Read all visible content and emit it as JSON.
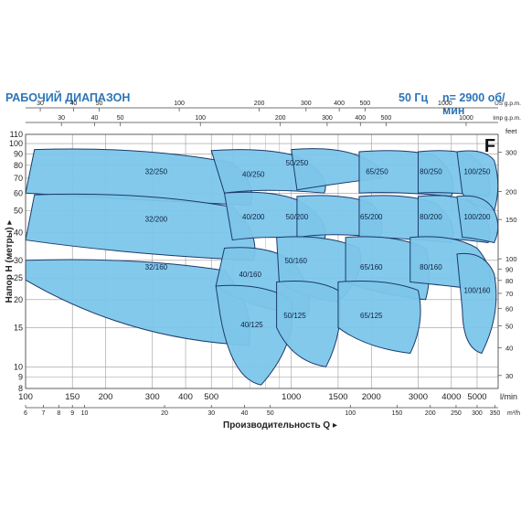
{
  "header": {
    "title": "РАБОЧИЙ ДИАПАЗОН",
    "frequency": "50 Гц",
    "speed": "n= 2900 об/мин",
    "family_letter": "F"
  },
  "colors": {
    "fill": "#7cc6ea",
    "stroke": "#1b3a6b",
    "grid": "#9a9a9a",
    "title": "#2b74b8",
    "text": "#222222"
  },
  "chart_data": {
    "type": "area",
    "x_scale": "log",
    "y_scale": "log",
    "xlim": [
      100,
      6000
    ],
    "ylim": [
      8,
      110
    ],
    "xlabel": "Производительность Q",
    "ylabel": "Напор Н (метры)",
    "axes": {
      "lmin": {
        "unit": "l/min",
        "ticks": [
          100,
          150,
          200,
          300,
          400,
          500,
          1000,
          1500,
          2000,
          3000,
          4000,
          5000
        ],
        "labels": [
          "100",
          "150",
          "200",
          "300",
          "400",
          "500",
          "1000",
          "1500",
          "2000",
          "3000",
          "4000",
          "5000"
        ]
      },
      "m3h": {
        "unit": "m³/h",
        "ticks": [
          6,
          7,
          8,
          9,
          10,
          20,
          30,
          40,
          50,
          100,
          150,
          200,
          250,
          300,
          350
        ],
        "labels": [
          "6",
          "7",
          "8",
          "9",
          "10",
          "20",
          "30",
          "40",
          "50",
          "100",
          "150",
          "200",
          "250",
          "300",
          "350"
        ]
      },
      "usgpm": {
        "unit": "US g.p.m.",
        "ticks": [
          30,
          40,
          50,
          100,
          200,
          300,
          400,
          500,
          1000
        ],
        "labels": [
          "30",
          "40",
          "50",
          "100",
          "200",
          "300",
          "400",
          "500",
          "1000"
        ]
      },
      "impgpm": {
        "unit": "Imp g.p.m.",
        "ticks": [
          30,
          40,
          50,
          100,
          200,
          300,
          400,
          500,
          1000
        ],
        "labels": [
          "30",
          "40",
          "50",
          "100",
          "200",
          "300",
          "400",
          "500",
          "1000"
        ]
      },
      "meters": {
        "ticks": [
          8,
          9,
          10,
          15,
          20,
          25,
          30,
          40,
          50,
          60,
          70,
          80,
          90,
          100,
          110
        ],
        "labels": [
          "8",
          "9",
          "10",
          "15",
          "20",
          "25",
          "30",
          "40",
          "50",
          "60",
          "70",
          "80",
          "90",
          "100",
          "110"
        ]
      },
      "feet": {
        "unit": "feet",
        "ticks": [
          30,
          40,
          50,
          60,
          70,
          80,
          90,
          100,
          150,
          200,
          300
        ],
        "labels": [
          "30",
          "40",
          "50",
          "60",
          "70",
          "80",
          "90",
          "100",
          "150",
          "200",
          "300"
        ]
      }
    },
    "pump_regions": [
      {
        "name": "32/250",
        "label_at": [
          310,
          75
        ],
        "corners": {
          "tl": [
            108,
            94
          ],
          "tr": [
            600,
            82
          ],
          "br": [
            700,
            53
          ],
          "bl": [
            100,
            60
          ]
        }
      },
      {
        "name": "32/200",
        "label_at": [
          310,
          46
        ],
        "corners": {
          "tl": [
            108,
            59
          ],
          "tr": [
            600,
            52
          ],
          "br": [
            720,
            30
          ],
          "bl": [
            100,
            37
          ]
        }
      },
      {
        "name": "32/160",
        "label_at": [
          310,
          28
        ],
        "corners": {
          "tl": [
            100,
            30
          ],
          "tr": [
            560,
            27
          ],
          "br": [
            690,
            12.5
          ],
          "bl": [
            100,
            24.5
          ]
        }
      },
      {
        "name": "40/250",
        "label_at": [
          720,
          73
        ],
        "corners": {
          "tl": [
            500,
            93
          ],
          "tr": [
            1050,
            88
          ],
          "br": [
            1330,
            60
          ],
          "bl": [
            560,
            60
          ]
        }
      },
      {
        "name": "40/200",
        "label_at": [
          720,
          47
        ],
        "corners": {
          "tl": [
            560,
            60
          ],
          "tr": [
            1050,
            56
          ],
          "br": [
            1330,
            37
          ],
          "bl": [
            600,
            37
          ]
        }
      },
      {
        "name": "40/160",
        "label_at": [
          700,
          26
        ],
        "corners": {
          "tl": [
            560,
            34
          ],
          "tr": [
            1000,
            30
          ],
          "br": [
            1150,
            17
          ],
          "bl": [
            520,
            23
          ]
        }
      },
      {
        "name": "40/125",
        "label_at": [
          710,
          15.5
        ],
        "corners": {
          "tl": [
            520,
            23
          ],
          "tr": [
            1000,
            20
          ],
          "br": [
            770,
            8.3
          ],
          "bl": [
            540,
            17
          ]
        }
      },
      {
        "name": "50/250",
        "label_at": [
          1050,
          82
        ],
        "corners": {
          "tl": [
            1000,
            94
          ],
          "tr": [
            1800,
            88
          ],
          "br": [
            2150,
            70
          ],
          "bl": [
            1050,
            62
          ]
        }
      },
      {
        "name": "50/200",
        "label_at": [
          1050,
          47
        ],
        "corners": {
          "tl": [
            1050,
            58
          ],
          "tr": [
            2000,
            54
          ],
          "br": [
            2150,
            38
          ],
          "bl": [
            1050,
            38
          ]
        }
      },
      {
        "name": "50/160",
        "label_at": [
          1040,
          30
        ],
        "corners": {
          "tl": [
            880,
            38
          ],
          "tr": [
            1800,
            34
          ],
          "br": [
            1500,
            19.5
          ],
          "bl": [
            900,
            24
          ]
        }
      },
      {
        "name": "50/125",
        "label_at": [
          1030,
          17
        ],
        "corners": {
          "tl": [
            880,
            24
          ],
          "tr": [
            1500,
            22
          ],
          "br": [
            1350,
            10
          ],
          "bl": [
            880,
            15
          ]
        }
      },
      {
        "name": "65/250",
        "label_at": [
          2100,
          75
        ],
        "corners": {
          "tl": [
            1800,
            92
          ],
          "tr": [
            3500,
            88
          ],
          "br": [
            4000,
            58
          ],
          "bl": [
            1800,
            60
          ]
        }
      },
      {
        "name": "65/200",
        "label_at": [
          2000,
          47
        ],
        "corners": {
          "tl": [
            1800,
            58
          ],
          "tr": [
            3500,
            54
          ],
          "br": [
            4000,
            36
          ],
          "bl": [
            1800,
            38
          ]
        }
      },
      {
        "name": "65/160",
        "label_at": [
          2000,
          28
        ],
        "corners": {
          "tl": [
            1600,
            38
          ],
          "tr": [
            3200,
            34
          ],
          "br": [
            3200,
            20
          ],
          "bl": [
            1600,
            24
          ]
        }
      },
      {
        "name": "65/125",
        "label_at": [
          2000,
          17
        ],
        "corners": {
          "tl": [
            1500,
            24
          ],
          "tr": [
            3000,
            22
          ],
          "br": [
            2800,
            11.5
          ],
          "bl": [
            1500,
            15
          ]
        }
      },
      {
        "name": "80/250",
        "label_at": [
          3350,
          75
        ],
        "corners": {
          "tl": [
            3000,
            92
          ],
          "tr": [
            4800,
            88
          ],
          "br": [
            5500,
            58
          ],
          "bl": [
            3000,
            60
          ]
        }
      },
      {
        "name": "80/200",
        "label_at": [
          3350,
          47
        ],
        "corners": {
          "tl": [
            3000,
            58
          ],
          "tr": [
            4800,
            54
          ],
          "br": [
            5500,
            36
          ],
          "bl": [
            3000,
            38
          ]
        }
      },
      {
        "name": "80/160",
        "label_at": [
          3350,
          28
        ],
        "corners": {
          "tl": [
            2800,
            38
          ],
          "tr": [
            5000,
            34
          ],
          "br": [
            5500,
            22
          ],
          "bl": [
            2800,
            24
          ]
        }
      },
      {
        "name": "100/250",
        "label_at": [
          5000,
          75
        ],
        "corners": {
          "tl": [
            4200,
            92
          ],
          "tr": [
            5800,
            84
          ],
          "br": [
            5800,
            50
          ],
          "bl": [
            4400,
            60
          ]
        }
      },
      {
        "name": "100/200",
        "label_at": [
          5000,
          47
        ],
        "corners": {
          "tl": [
            4200,
            58
          ],
          "tr": [
            5800,
            50
          ],
          "br": [
            5800,
            36
          ],
          "bl": [
            4400,
            38
          ]
        }
      },
      {
        "name": "100/160",
        "label_at": [
          5000,
          22
        ],
        "corners": {
          "tl": [
            4200,
            32
          ],
          "tr": [
            5800,
            26
          ],
          "br": [
            5200,
            11.5
          ],
          "bl": [
            4400,
            18
          ]
        }
      }
    ]
  }
}
